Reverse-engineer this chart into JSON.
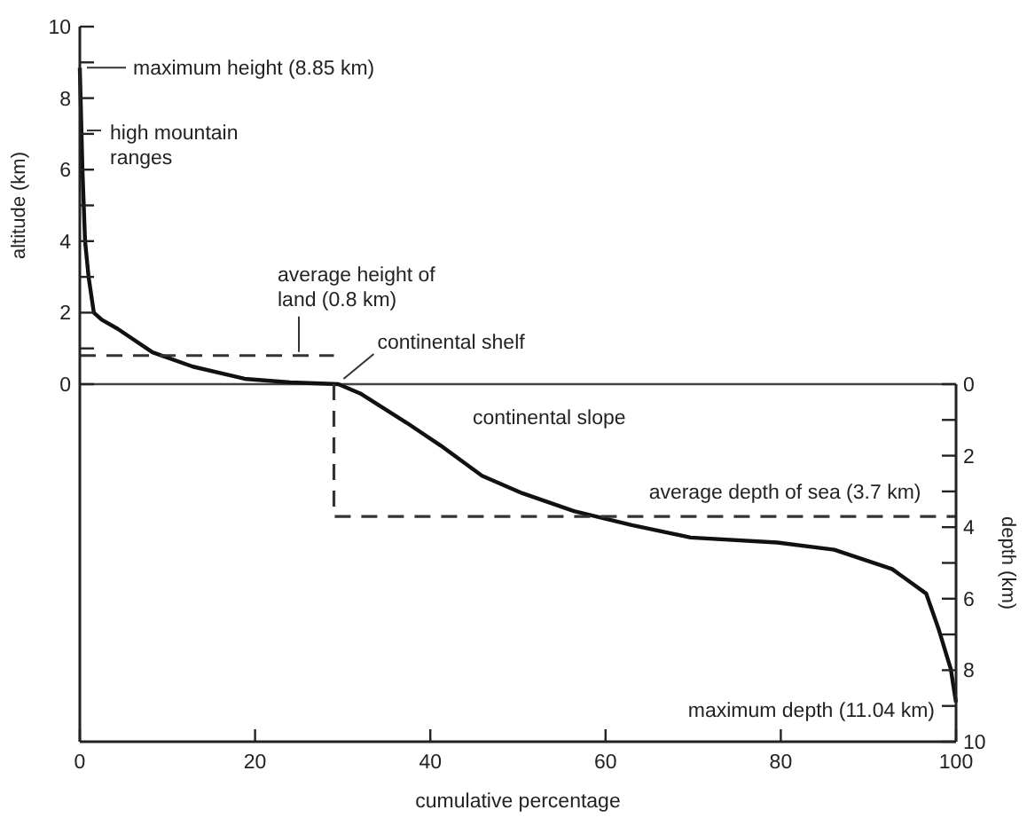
{
  "chart_data": {
    "type": "line",
    "xlabel": "cumulative percentage",
    "ylabel": "altitude (km)",
    "y2label": "depth (km)",
    "xlim": [
      0,
      100
    ],
    "xticks": [
      0,
      20,
      40,
      60,
      80,
      100
    ],
    "ylim": [
      -10,
      10
    ],
    "yticks": [
      0,
      {
        "value": 1,
        "label": null
      },
      2,
      {
        "value": 3,
        "label": null
      },
      4,
      {
        "value": 5,
        "label": null
      },
      6,
      {
        "value": 7,
        "label": null
      },
      8,
      {
        "value": 9,
        "label": null
      },
      10
    ],
    "y2lim": [
      10,
      -10
    ],
    "y2ticks": [
      0,
      {
        "value": 1,
        "label": null
      },
      2,
      {
        "value": 3,
        "label": null
      },
      4,
      {
        "value": 5,
        "label": null
      },
      6,
      {
        "value": 7,
        "label": null
      },
      8,
      {
        "value": 9,
        "label": null
      },
      10
    ],
    "marker": "none",
    "series": [
      {
        "color": "#111111",
        "line_style": "solid",
        "x": [
          0,
          0.3,
          0.6,
          1,
          1.6,
          2.5,
          4.3,
          8.3,
          12.9,
          18.8,
          24,
          29.5,
          32,
          37.3,
          41.2,
          45.9,
          50.5,
          56.4,
          63,
          69.7,
          79.6,
          86.1,
          92.7,
          96.6,
          98,
          99.4,
          99.8,
          100
        ],
        "values": [
          8.85,
          6,
          4,
          3,
          2,
          1.8,
          1.55,
          0.89,
          0.49,
          0.15,
          0.05,
          0,
          -0.26,
          -1.08,
          -1.72,
          -2.56,
          -3.05,
          -3.55,
          -3.94,
          -4.29,
          -4.43,
          -4.63,
          -5.17,
          -5.86,
          -6.84,
          -7.97,
          -8.6,
          -8.9
        ]
      },
      {
        "color": "#333333",
        "line_style": "dashed",
        "x": [
          0,
          29
        ],
        "values": [
          0.8,
          0.8
        ]
      },
      {
        "color": "#333333",
        "line_style": "dashed",
        "x": [
          29,
          29,
          100
        ],
        "values": [
          0,
          -3.7,
          -3.7
        ]
      }
    ],
    "ref_lines": [
      {
        "axis": "y",
        "value": 0,
        "color": "#444444",
        "line_style": "solid"
      }
    ],
    "annotations": [
      {
        "text": "maximum height (8.85 km)",
        "x": 0,
        "y": 8.85
      },
      {
        "text": "high mountain ranges",
        "x": 0,
        "y": 6.5
      },
      {
        "text": "average height of land (0.8 km)",
        "x": 25,
        "y": 0.8
      },
      {
        "text": "continental shelf",
        "x": 29.5,
        "y": 0
      },
      {
        "text": "continental slope",
        "x": 42,
        "y": -1.8
      },
      {
        "text": "average depth of sea (3.7 km)",
        "x": 96,
        "y": -3.7
      },
      "maximum depth (11.04 km)"
    ]
  }
}
